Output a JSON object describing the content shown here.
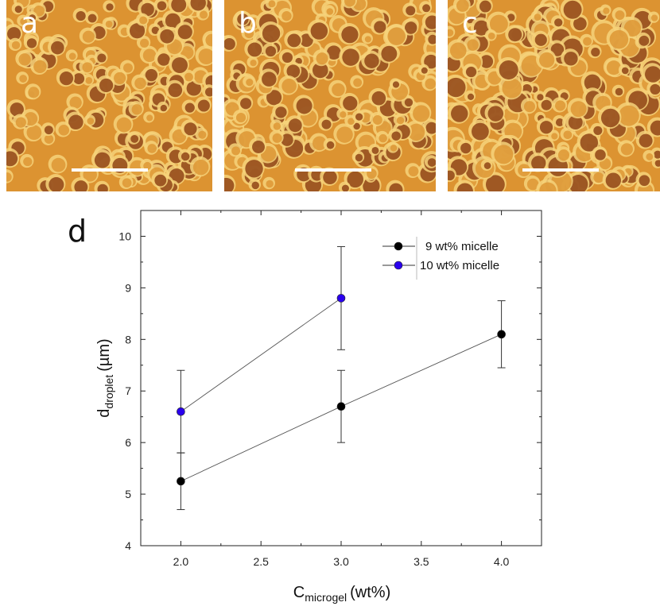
{
  "panels": [
    {
      "label": "a"
    },
    {
      "label": "b"
    },
    {
      "label": "c"
    }
  ],
  "chart_label": "d",
  "colors": {
    "micrograph_bright": "#f6d27a",
    "micrograph_mid": "#dc9331",
    "micrograph_dark": "#8a3c10",
    "series_9": "#000000",
    "series_10": "#2a00ee"
  },
  "chart_data": {
    "type": "scatter",
    "xlabel_main": "C",
    "xlabel_sub": "microgel",
    "xlabel_unit": "(wt%)",
    "ylabel_main": "d",
    "ylabel_sub": "droplet",
    "ylabel_unit": "(µm)",
    "xlim": [
      1.75,
      4.25
    ],
    "ylim": [
      4,
      10.5
    ],
    "xticks": [
      "2.0",
      "2.5",
      "3.0",
      "3.5",
      "4.0"
    ],
    "yticks": [
      "4",
      "5",
      "6",
      "7",
      "8",
      "9",
      "10"
    ],
    "legend_position": "top-right",
    "series": [
      {
        "name": "9 wt% micelle",
        "color": "#000000",
        "points": [
          {
            "x": 2.0,
            "y": 5.25,
            "err_low": 4.7,
            "err_high": 5.8
          },
          {
            "x": 3.0,
            "y": 6.7,
            "err_low": 6.0,
            "err_high": 7.4
          },
          {
            "x": 4.0,
            "y": 8.1,
            "err_low": 7.45,
            "err_high": 8.75
          }
        ]
      },
      {
        "name": "10 wt% micelle",
        "color": "#2a00ee",
        "points": [
          {
            "x": 2.0,
            "y": 6.6,
            "err_low": 5.8,
            "err_high": 7.4
          },
          {
            "x": 3.0,
            "y": 8.8,
            "err_low": 7.8,
            "err_high": 9.8
          }
        ]
      }
    ]
  }
}
